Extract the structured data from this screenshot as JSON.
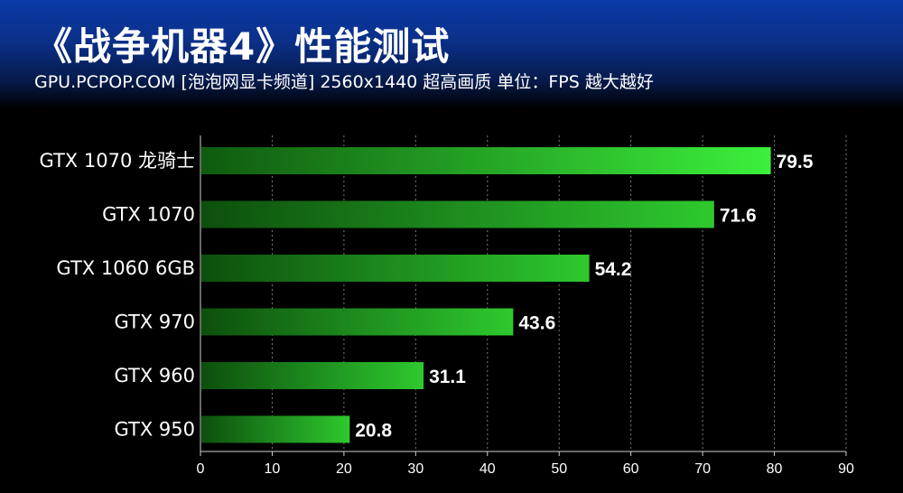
{
  "header": {
    "title": "《战争机器4》性能测试",
    "subtitle": "GPU.PCPOP.COM [泡泡网显卡频道]  2560x1440 超高画质 单位：FPS 越大越好"
  },
  "colors": {
    "bar_dark": "#0f5a0f",
    "bar_light": "#2bd82b",
    "bar_top_light": "#3cf03c",
    "background": "#000000"
  },
  "chart_data": {
    "type": "bar",
    "orientation": "horizontal",
    "categories": [
      "GTX 1070 龙骑士",
      "GTX 1070",
      "GTX 1060 6GB",
      "GTX 970",
      "GTX 960",
      "GTX 950"
    ],
    "values": [
      79.5,
      71.6,
      54.2,
      43.6,
      31.1,
      20.8
    ],
    "xlim": [
      0,
      90
    ],
    "xticks": [
      0,
      10,
      20,
      30,
      40,
      50,
      60,
      70,
      80,
      90
    ],
    "grid": true,
    "legend": "none"
  }
}
